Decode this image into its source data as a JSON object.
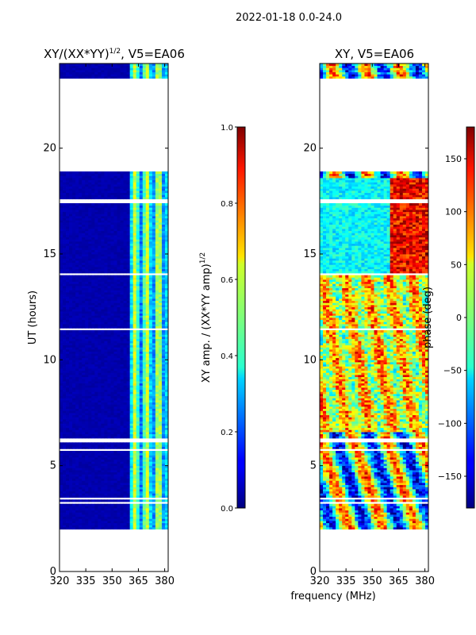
{
  "suptitle": "2022-01-18 0.0-24.0",
  "chart_data": [
    {
      "type": "heatmap",
      "title": "XY/(XX*YY)",
      "title_power": "1/2",
      "title_suffix": ", V5=EA06",
      "xlabel": "",
      "ylabel": "UT (hours)",
      "xlim": [
        320,
        382
      ],
      "ylim": [
        0,
        24
      ],
      "xticks": [
        "320",
        "335",
        "350",
        "365",
        "380"
      ],
      "xtick_values": [
        320,
        335,
        350,
        365,
        380
      ],
      "yticks": [
        "0",
        "5",
        "10",
        "15",
        "20"
      ],
      "ytick_values": [
        0,
        5,
        10,
        15,
        20
      ],
      "data_extent_hours": [
        2.0,
        24.0
      ],
      "band_start_mhz": 360,
      "colormap": "jet",
      "colorbar": {
        "label": "XY amp. / (XX*YY amp)",
        "label_power": "1/2",
        "range": [
          0.0,
          1.0
        ],
        "ticks": [
          "0.0",
          "0.2",
          "0.4",
          "0.6",
          "0.8",
          "1.0"
        ],
        "tick_values": [
          0.0,
          0.2,
          0.4,
          0.6,
          0.8,
          1.0
        ]
      }
    },
    {
      "type": "heatmap",
      "title": "XY, V5=EA06",
      "xlabel": "frequency (MHz)",
      "ylabel": "",
      "xlim": [
        320,
        382
      ],
      "ylim": [
        0,
        24
      ],
      "xticks": [
        "320",
        "335",
        "350",
        "365",
        "380"
      ],
      "xtick_values": [
        320,
        335,
        350,
        365,
        380
      ],
      "yticks": [
        "0",
        "5",
        "10",
        "15",
        "20"
      ],
      "ytick_values": [
        0,
        5,
        10,
        15,
        20
      ],
      "data_extent_hours": [
        2.0,
        24.0
      ],
      "colormap": "jet",
      "colorbar": {
        "label": "phase (deg)",
        "range": [
          -180,
          180
        ],
        "ticks": [
          "−150",
          "−100",
          "−50",
          "0",
          "50",
          "100",
          "150"
        ],
        "tick_values": [
          -150,
          -100,
          -50,
          0,
          50,
          100,
          150
        ]
      }
    }
  ],
  "gaps_hours": [
    [
      20.0,
      23.35
    ],
    [
      19.35,
      20.4
    ],
    [
      18.9,
      19.3
    ],
    [
      17.4,
      17.55
    ],
    [
      5.65,
      5.8
    ],
    [
      6.1,
      6.25
    ],
    [
      11.35,
      11.5
    ],
    [
      14.0,
      14.1
    ],
    [
      3.2,
      3.3
    ],
    [
      3.45,
      3.52
    ]
  ]
}
